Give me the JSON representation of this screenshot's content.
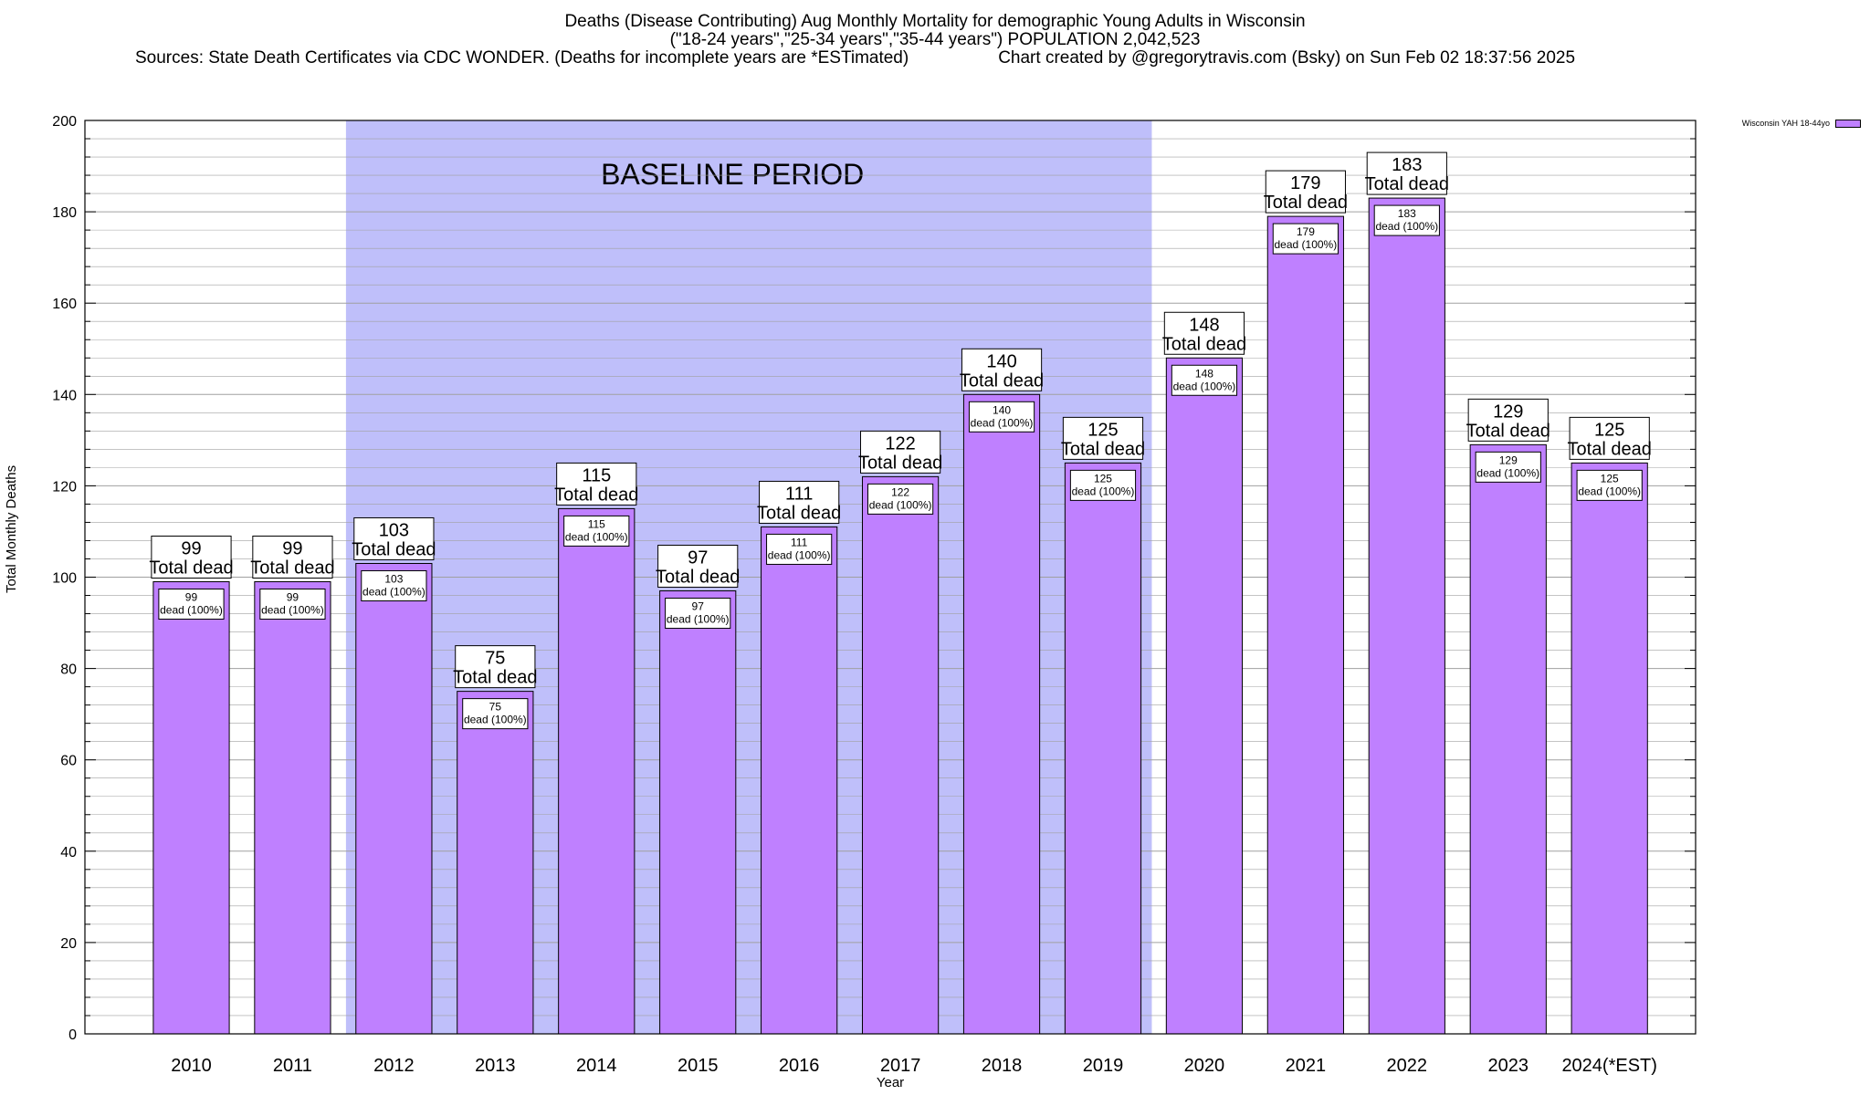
{
  "header": {
    "title_line1": "Deaths (Disease Contributing) Aug Monthly Mortality for demographic Young Adults in Wisconsin",
    "title_line2": "(\"18-24 years\",\"25-34 years\",\"35-44 years\") POPULATION 2,042,523",
    "sources": "Sources: State Death Certificates via CDC WONDER. (Deaths for incomplete years are *ESTimated)",
    "credit": "Chart created by @gregorytravis.com (Bsky) on Sun Feb 02 18:37:56 2025"
  },
  "colors": {
    "bar": "#bf80ff",
    "baseline_band": "#bfbffa",
    "grid": "#a0a0a0"
  },
  "chart_data": {
    "type": "bar",
    "xlabel": "Year",
    "ylabel": "Total Monthly Deaths",
    "ylim": [
      0,
      200
    ],
    "yticks": [
      0,
      20,
      40,
      60,
      80,
      100,
      120,
      140,
      160,
      180,
      200
    ],
    "categories": [
      "2010",
      "2011",
      "2012",
      "2013",
      "2014",
      "2015",
      "2016",
      "2017",
      "2018",
      "2019",
      "2020",
      "2021",
      "2022",
      "2023",
      "2024(*EST)"
    ],
    "series": [
      {
        "name": "Wisconsin YAH 18-44yo",
        "values": [
          99,
          99,
          103,
          75,
          115,
          97,
          111,
          122,
          140,
          125,
          148,
          179,
          183,
          129,
          125
        ]
      }
    ],
    "total_label_suffix": "Total dead",
    "inner_label_suffix": "dead (100%)",
    "baseline": {
      "label": "BASELINE PERIOD",
      "from_category": "2012",
      "to_category": "2019"
    },
    "legend": "top-right"
  }
}
